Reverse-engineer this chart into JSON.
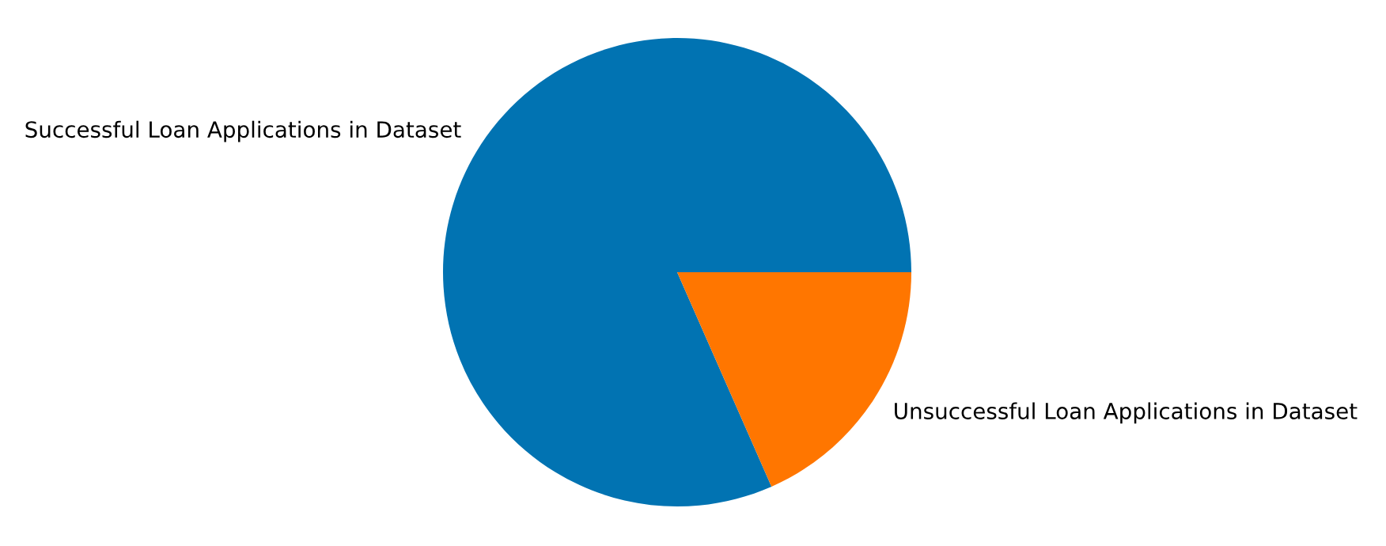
{
  "chart_data": {
    "type": "pie",
    "categories": [
      "Successful Loan Applications in Dataset",
      "Unsuccessful Loan Applications in Dataset"
    ],
    "values": [
      81.6,
      18.4
    ],
    "colors": [
      "#0173b2",
      "#ff7600"
    ]
  }
}
